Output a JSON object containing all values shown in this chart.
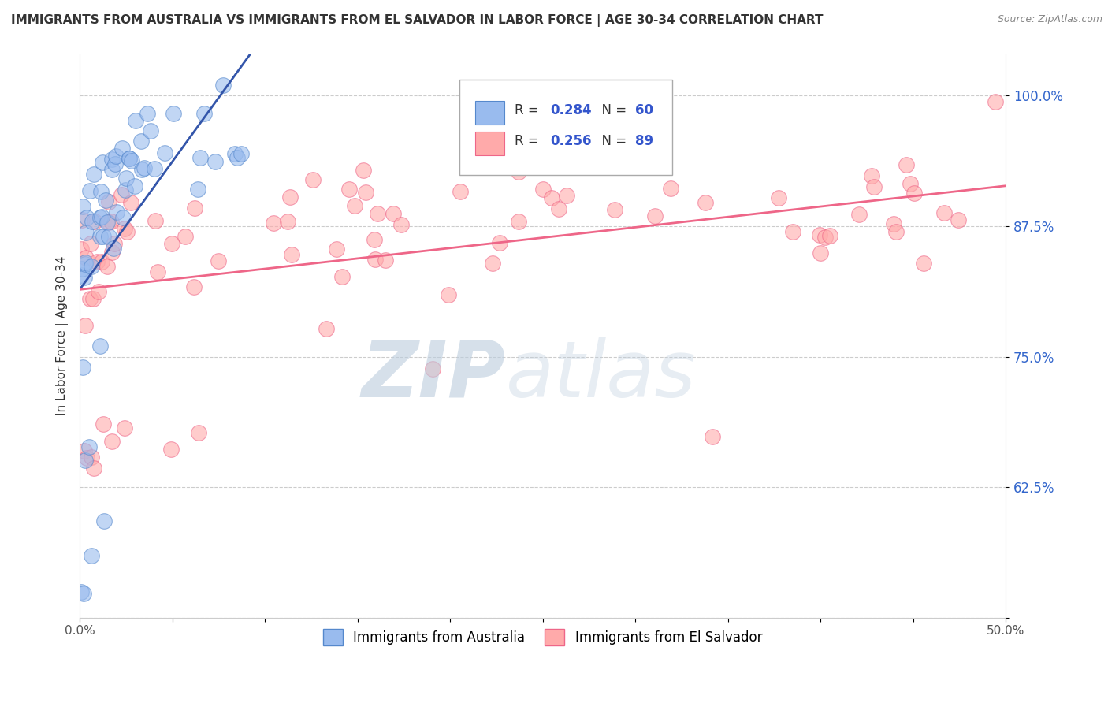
{
  "title": "IMMIGRANTS FROM AUSTRALIA VS IMMIGRANTS FROM EL SALVADOR IN LABOR FORCE | AGE 30-34 CORRELATION CHART",
  "source": "Source: ZipAtlas.com",
  "ylabel": "In Labor Force | Age 30-34",
  "xlim": [
    0.0,
    0.5
  ],
  "ylim": [
    0.5,
    1.04
  ],
  "xticks": [
    0.0,
    0.05,
    0.1,
    0.15,
    0.2,
    0.25,
    0.3,
    0.35,
    0.4,
    0.45,
    0.5
  ],
  "xticklabels": [
    "0.0%",
    "",
    "",
    "",
    "",
    "",
    "",
    "",
    "",
    "",
    "50.0%"
  ],
  "ytick_positions": [
    0.5,
    0.625,
    0.75,
    0.875,
    1.0
  ],
  "ytick_labels": [
    "",
    "62.5%",
    "75.0%",
    "87.5%",
    "100.0%"
  ],
  "australia_color": "#99BBEE",
  "elsalvador_color": "#FFAAAA",
  "australia_edge_color": "#5588CC",
  "elsalvador_edge_color": "#EE6688",
  "australia_line_color": "#3355AA",
  "elsalvador_line_color": "#EE6688",
  "R_australia": 0.284,
  "N_australia": 60,
  "R_elsalvador": 0.256,
  "N_elsalvador": 89,
  "grid_color": "#CCCCCC",
  "watermark_zip_color": "#BBCCDD",
  "watermark_atlas_color": "#BBCCDD",
  "legend_box_color": "#DDDDDD",
  "legend_text_color": "#333333",
  "legend_value_color": "#3355CC",
  "ytick_color": "#3366CC",
  "title_color": "#333333",
  "source_color": "#888888",
  "ylabel_color": "#333333"
}
